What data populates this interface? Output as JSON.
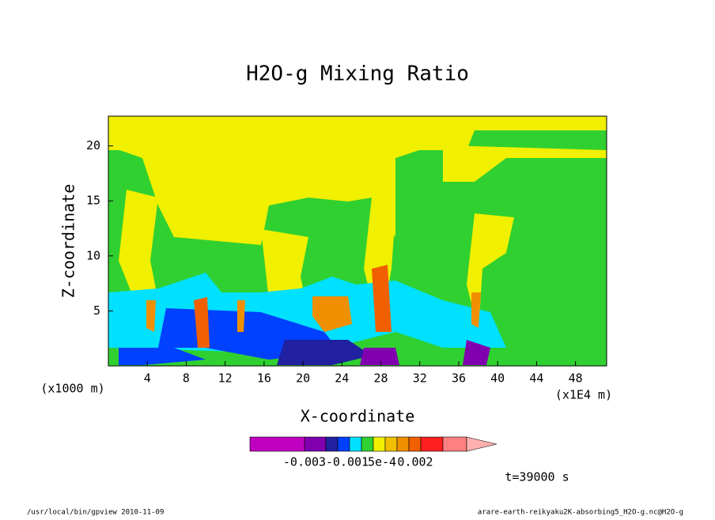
{
  "chart_data": {
    "type": "contour",
    "title": "H2O-g Mixing Ratio",
    "x_label": "X-coordinate",
    "y_label": "Z-coordinate",
    "x_unit": "(x1E4 m)",
    "y_unit": "(x1000 m)",
    "xlim": [
      0,
      51.2
    ],
    "ylim": [
      0,
      22.7
    ],
    "xticks": [
      4,
      8,
      12,
      16,
      20,
      24,
      28,
      32,
      36,
      40,
      44,
      48
    ],
    "yticks": [
      5,
      10,
      15,
      20
    ],
    "colorbar": {
      "colors": [
        "#c000c0",
        "#8000b0",
        "#2020a0",
        "#0040ff",
        "#00e0ff",
        "#30d030",
        "#f0f000",
        "#f0c000",
        "#f09000",
        "#f06000",
        "#ff2020",
        "#ff8080",
        "#ffb0b0"
      ],
      "ticks": [
        {
          "value": -0.003,
          "label": "-0.003"
        },
        {
          "value": -0.001,
          "label": "-0.001"
        },
        {
          "value": 0.0005,
          "label": "5e-4"
        },
        {
          "value": 0.002,
          "label": "0.002"
        }
      ]
    },
    "time_label": "t=39000 s",
    "footer_left": "/usr/local/bin/gpview  2010-11-09",
    "footer_right": "arare-earth-reikyaku2K-absorbing5_H2O-g.nc@H2O-g"
  }
}
